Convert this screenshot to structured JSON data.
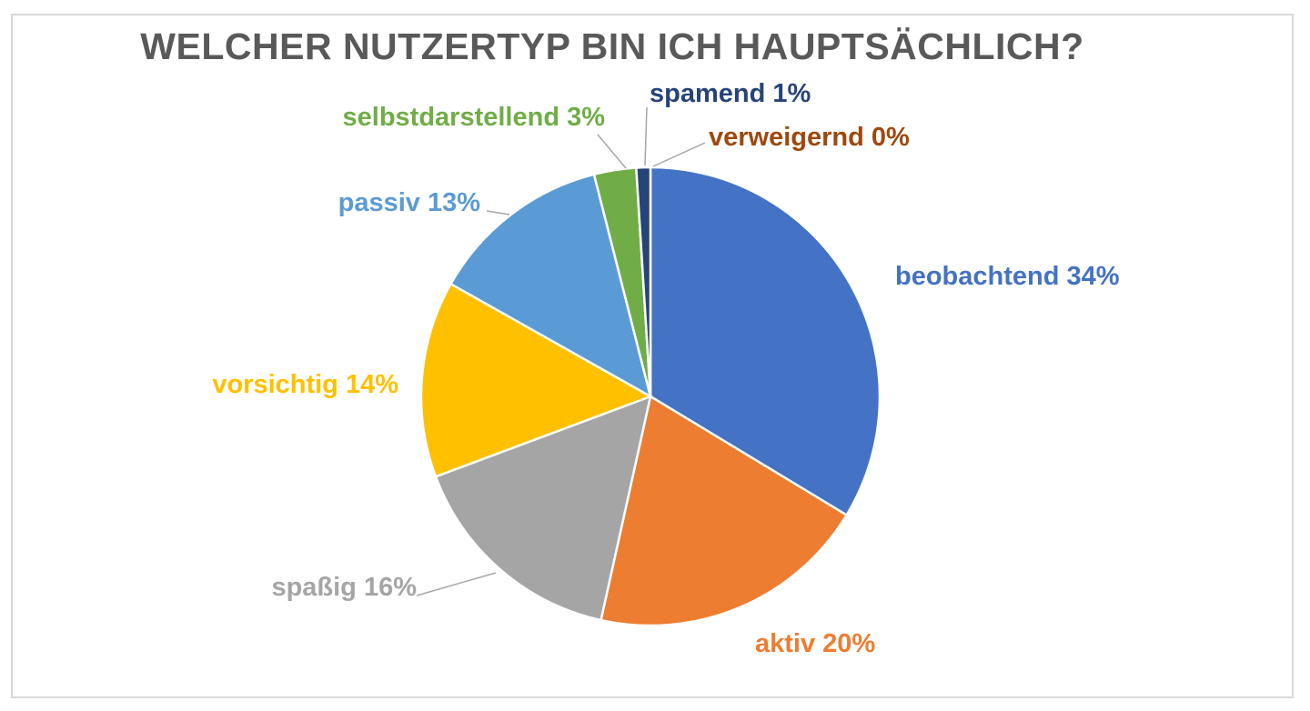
{
  "chart_data": {
    "type": "pie",
    "title": "WELCHER NUTZERTYP BIN ICH HAUPTSÄCHLICH?",
    "categories": [
      "beobachtend",
      "aktiv",
      "spaßig",
      "vorsichtig",
      "passiv",
      "selbstdarstellend",
      "spamend",
      "verweigernd"
    ],
    "values": [
      34,
      20,
      16,
      14,
      13,
      3,
      1,
      0
    ],
    "labels": [
      "beobachtend 34%",
      "aktiv 20%",
      "spaßig 16%",
      "vorsichtig 14%",
      "passiv 13%",
      "selbstdarstellend 3%",
      "spamend 1%",
      "verweigernd 0%"
    ],
    "colors": [
      "#4472C4",
      "#ED7D31",
      "#A5A5A5",
      "#FFC000",
      "#5B9BD5",
      "#70AD47",
      "#264478",
      "#9E480E"
    ],
    "legend": "none"
  }
}
